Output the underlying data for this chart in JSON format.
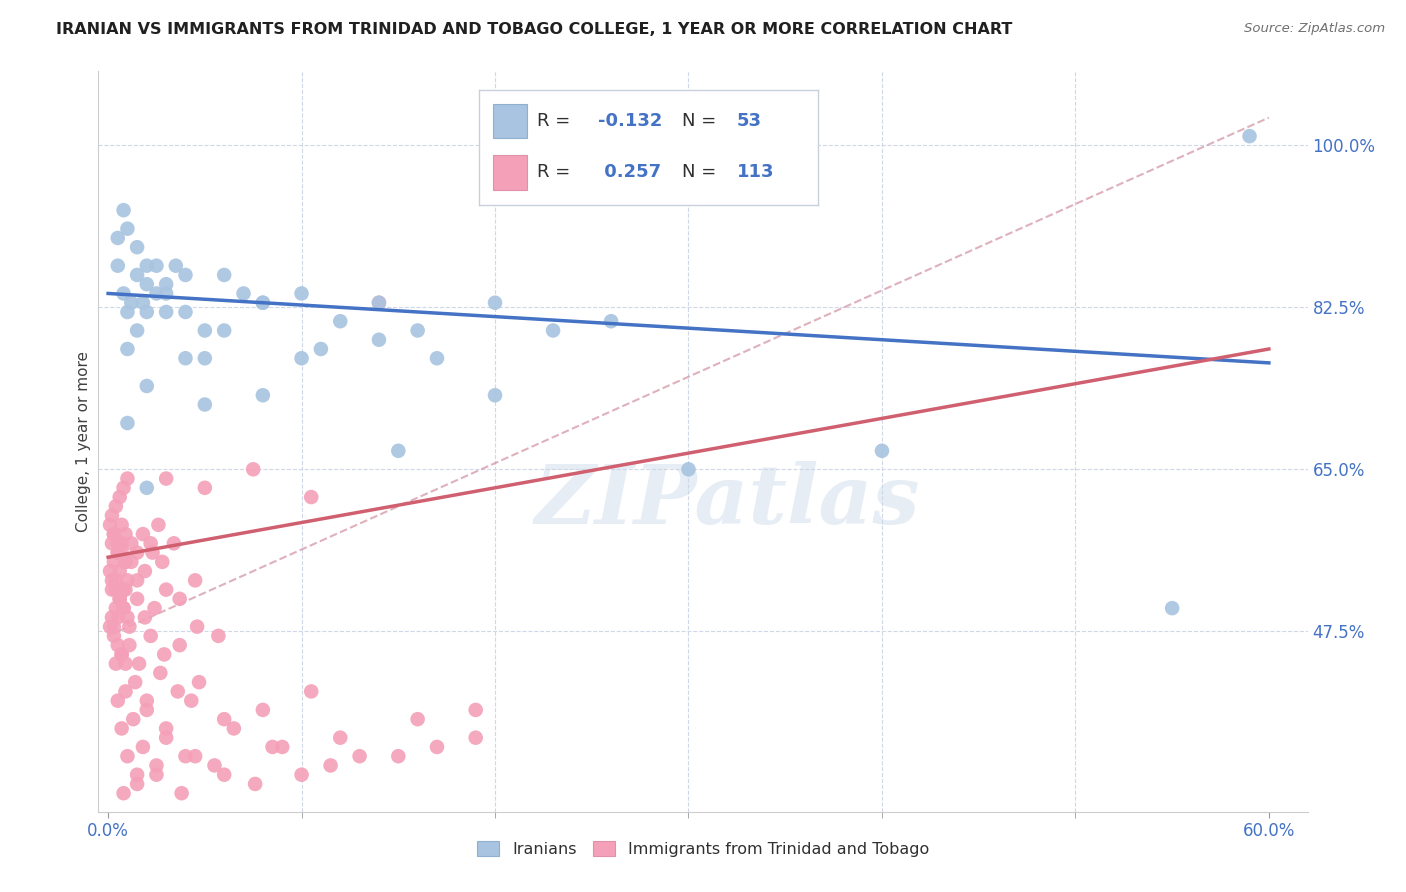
{
  "title": "IRANIAN VS IMMIGRANTS FROM TRINIDAD AND TOBAGO COLLEGE, 1 YEAR OR MORE CORRELATION CHART",
  "source": "Source: ZipAtlas.com",
  "xlabel_ticks": [
    "0.0%",
    "60.0%"
  ],
  "xlabel_vals": [
    0.0,
    0.6
  ],
  "ylabel": "College, 1 year or more",
  "ylabel_ticks": [
    "47.5%",
    "65.0%",
    "82.5%",
    "100.0%"
  ],
  "ylabel_vals": [
    0.475,
    0.65,
    0.825,
    1.0
  ],
  "xlim": [
    -0.005,
    0.62
  ],
  "ylim": [
    0.28,
    1.08
  ],
  "blue_R": -0.132,
  "blue_N": 53,
  "pink_R": 0.257,
  "pink_N": 113,
  "blue_color": "#a8c4e0",
  "pink_color": "#f4a0b8",
  "blue_line_color": "#4472c4",
  "pink_line_color": "#d06070",
  "dashed_line_color": "#d090a0",
  "watermark_text": "ZIPatlas",
  "legend_label_blue": "Iranians",
  "legend_label_pink": "Immigrants from Trinidad and Tobago",
  "blue_trend_x0": 0.0,
  "blue_trend_x1": 0.6,
  "blue_trend_y0": 0.84,
  "blue_trend_y1": 0.765,
  "pink_trend_x0": 0.0,
  "pink_trend_x1": 0.6,
  "pink_trend_y0": 0.555,
  "pink_trend_y1": 0.78,
  "dashed_trend_x0": 0.0,
  "dashed_trend_x1": 0.6,
  "dashed_trend_y0": 0.47,
  "dashed_trend_y1": 1.03,
  "blue_x": [
    0.005,
    0.008,
    0.01,
    0.012,
    0.015,
    0.018,
    0.02,
    0.025,
    0.03,
    0.005,
    0.008,
    0.01,
    0.015,
    0.02,
    0.025,
    0.03,
    0.035,
    0.04,
    0.01,
    0.015,
    0.02,
    0.03,
    0.04,
    0.05,
    0.06,
    0.07,
    0.08,
    0.01,
    0.02,
    0.04,
    0.06,
    0.08,
    0.1,
    0.12,
    0.14,
    0.16,
    0.02,
    0.05,
    0.08,
    0.11,
    0.14,
    0.17,
    0.2,
    0.23,
    0.26,
    0.05,
    0.1,
    0.15,
    0.2,
    0.3,
    0.4,
    0.55,
    0.59
  ],
  "blue_y": [
    0.87,
    0.84,
    0.82,
    0.83,
    0.86,
    0.83,
    0.85,
    0.84,
    0.82,
    0.9,
    0.93,
    0.91,
    0.89,
    0.87,
    0.87,
    0.85,
    0.87,
    0.86,
    0.78,
    0.8,
    0.82,
    0.84,
    0.82,
    0.8,
    0.86,
    0.84,
    0.83,
    0.7,
    0.74,
    0.77,
    0.8,
    0.83,
    0.84,
    0.81,
    0.83,
    0.8,
    0.63,
    0.77,
    0.73,
    0.78,
    0.79,
    0.77,
    0.73,
    0.8,
    0.81,
    0.72,
    0.77,
    0.67,
    0.83,
    0.65,
    0.67,
    0.5,
    1.01
  ],
  "pink_x": [
    0.001,
    0.002,
    0.003,
    0.004,
    0.005,
    0.006,
    0.007,
    0.008,
    0.009,
    0.01,
    0.001,
    0.002,
    0.003,
    0.004,
    0.005,
    0.006,
    0.007,
    0.008,
    0.009,
    0.01,
    0.001,
    0.002,
    0.003,
    0.004,
    0.005,
    0.006,
    0.007,
    0.008,
    0.009,
    0.01,
    0.002,
    0.003,
    0.005,
    0.007,
    0.009,
    0.012,
    0.015,
    0.018,
    0.022,
    0.026,
    0.002,
    0.004,
    0.006,
    0.009,
    0.012,
    0.015,
    0.019,
    0.023,
    0.028,
    0.034,
    0.003,
    0.005,
    0.008,
    0.011,
    0.015,
    0.019,
    0.024,
    0.03,
    0.037,
    0.045,
    0.004,
    0.007,
    0.011,
    0.016,
    0.022,
    0.029,
    0.037,
    0.046,
    0.057,
    0.005,
    0.009,
    0.014,
    0.02,
    0.027,
    0.036,
    0.047,
    0.007,
    0.013,
    0.02,
    0.03,
    0.043,
    0.06,
    0.08,
    0.105,
    0.01,
    0.018,
    0.03,
    0.045,
    0.065,
    0.09,
    0.12,
    0.16,
    0.19,
    0.015,
    0.025,
    0.04,
    0.06,
    0.085,
    0.115,
    0.15,
    0.19,
    0.008,
    0.015,
    0.025,
    0.038,
    0.055,
    0.076,
    0.1,
    0.13,
    0.17,
    0.03,
    0.05,
    0.075,
    0.105,
    0.14
  ],
  "pink_y": [
    0.59,
    0.6,
    0.58,
    0.61,
    0.57,
    0.62,
    0.56,
    0.63,
    0.55,
    0.64,
    0.54,
    0.53,
    0.55,
    0.52,
    0.56,
    0.51,
    0.57,
    0.5,
    0.58,
    0.49,
    0.48,
    0.49,
    0.47,
    0.5,
    0.46,
    0.51,
    0.45,
    0.52,
    0.44,
    0.53,
    0.57,
    0.58,
    0.56,
    0.59,
    0.55,
    0.57,
    0.56,
    0.58,
    0.57,
    0.59,
    0.52,
    0.53,
    0.54,
    0.52,
    0.55,
    0.53,
    0.54,
    0.56,
    0.55,
    0.57,
    0.48,
    0.49,
    0.5,
    0.48,
    0.51,
    0.49,
    0.5,
    0.52,
    0.51,
    0.53,
    0.44,
    0.45,
    0.46,
    0.44,
    0.47,
    0.45,
    0.46,
    0.48,
    0.47,
    0.4,
    0.41,
    0.42,
    0.4,
    0.43,
    0.41,
    0.42,
    0.37,
    0.38,
    0.39,
    0.37,
    0.4,
    0.38,
    0.39,
    0.41,
    0.34,
    0.35,
    0.36,
    0.34,
    0.37,
    0.35,
    0.36,
    0.38,
    0.39,
    0.32,
    0.33,
    0.34,
    0.32,
    0.35,
    0.33,
    0.34,
    0.36,
    0.3,
    0.31,
    0.32,
    0.3,
    0.33,
    0.31,
    0.32,
    0.34,
    0.35,
    0.64,
    0.63,
    0.65,
    0.62,
    0.83
  ]
}
